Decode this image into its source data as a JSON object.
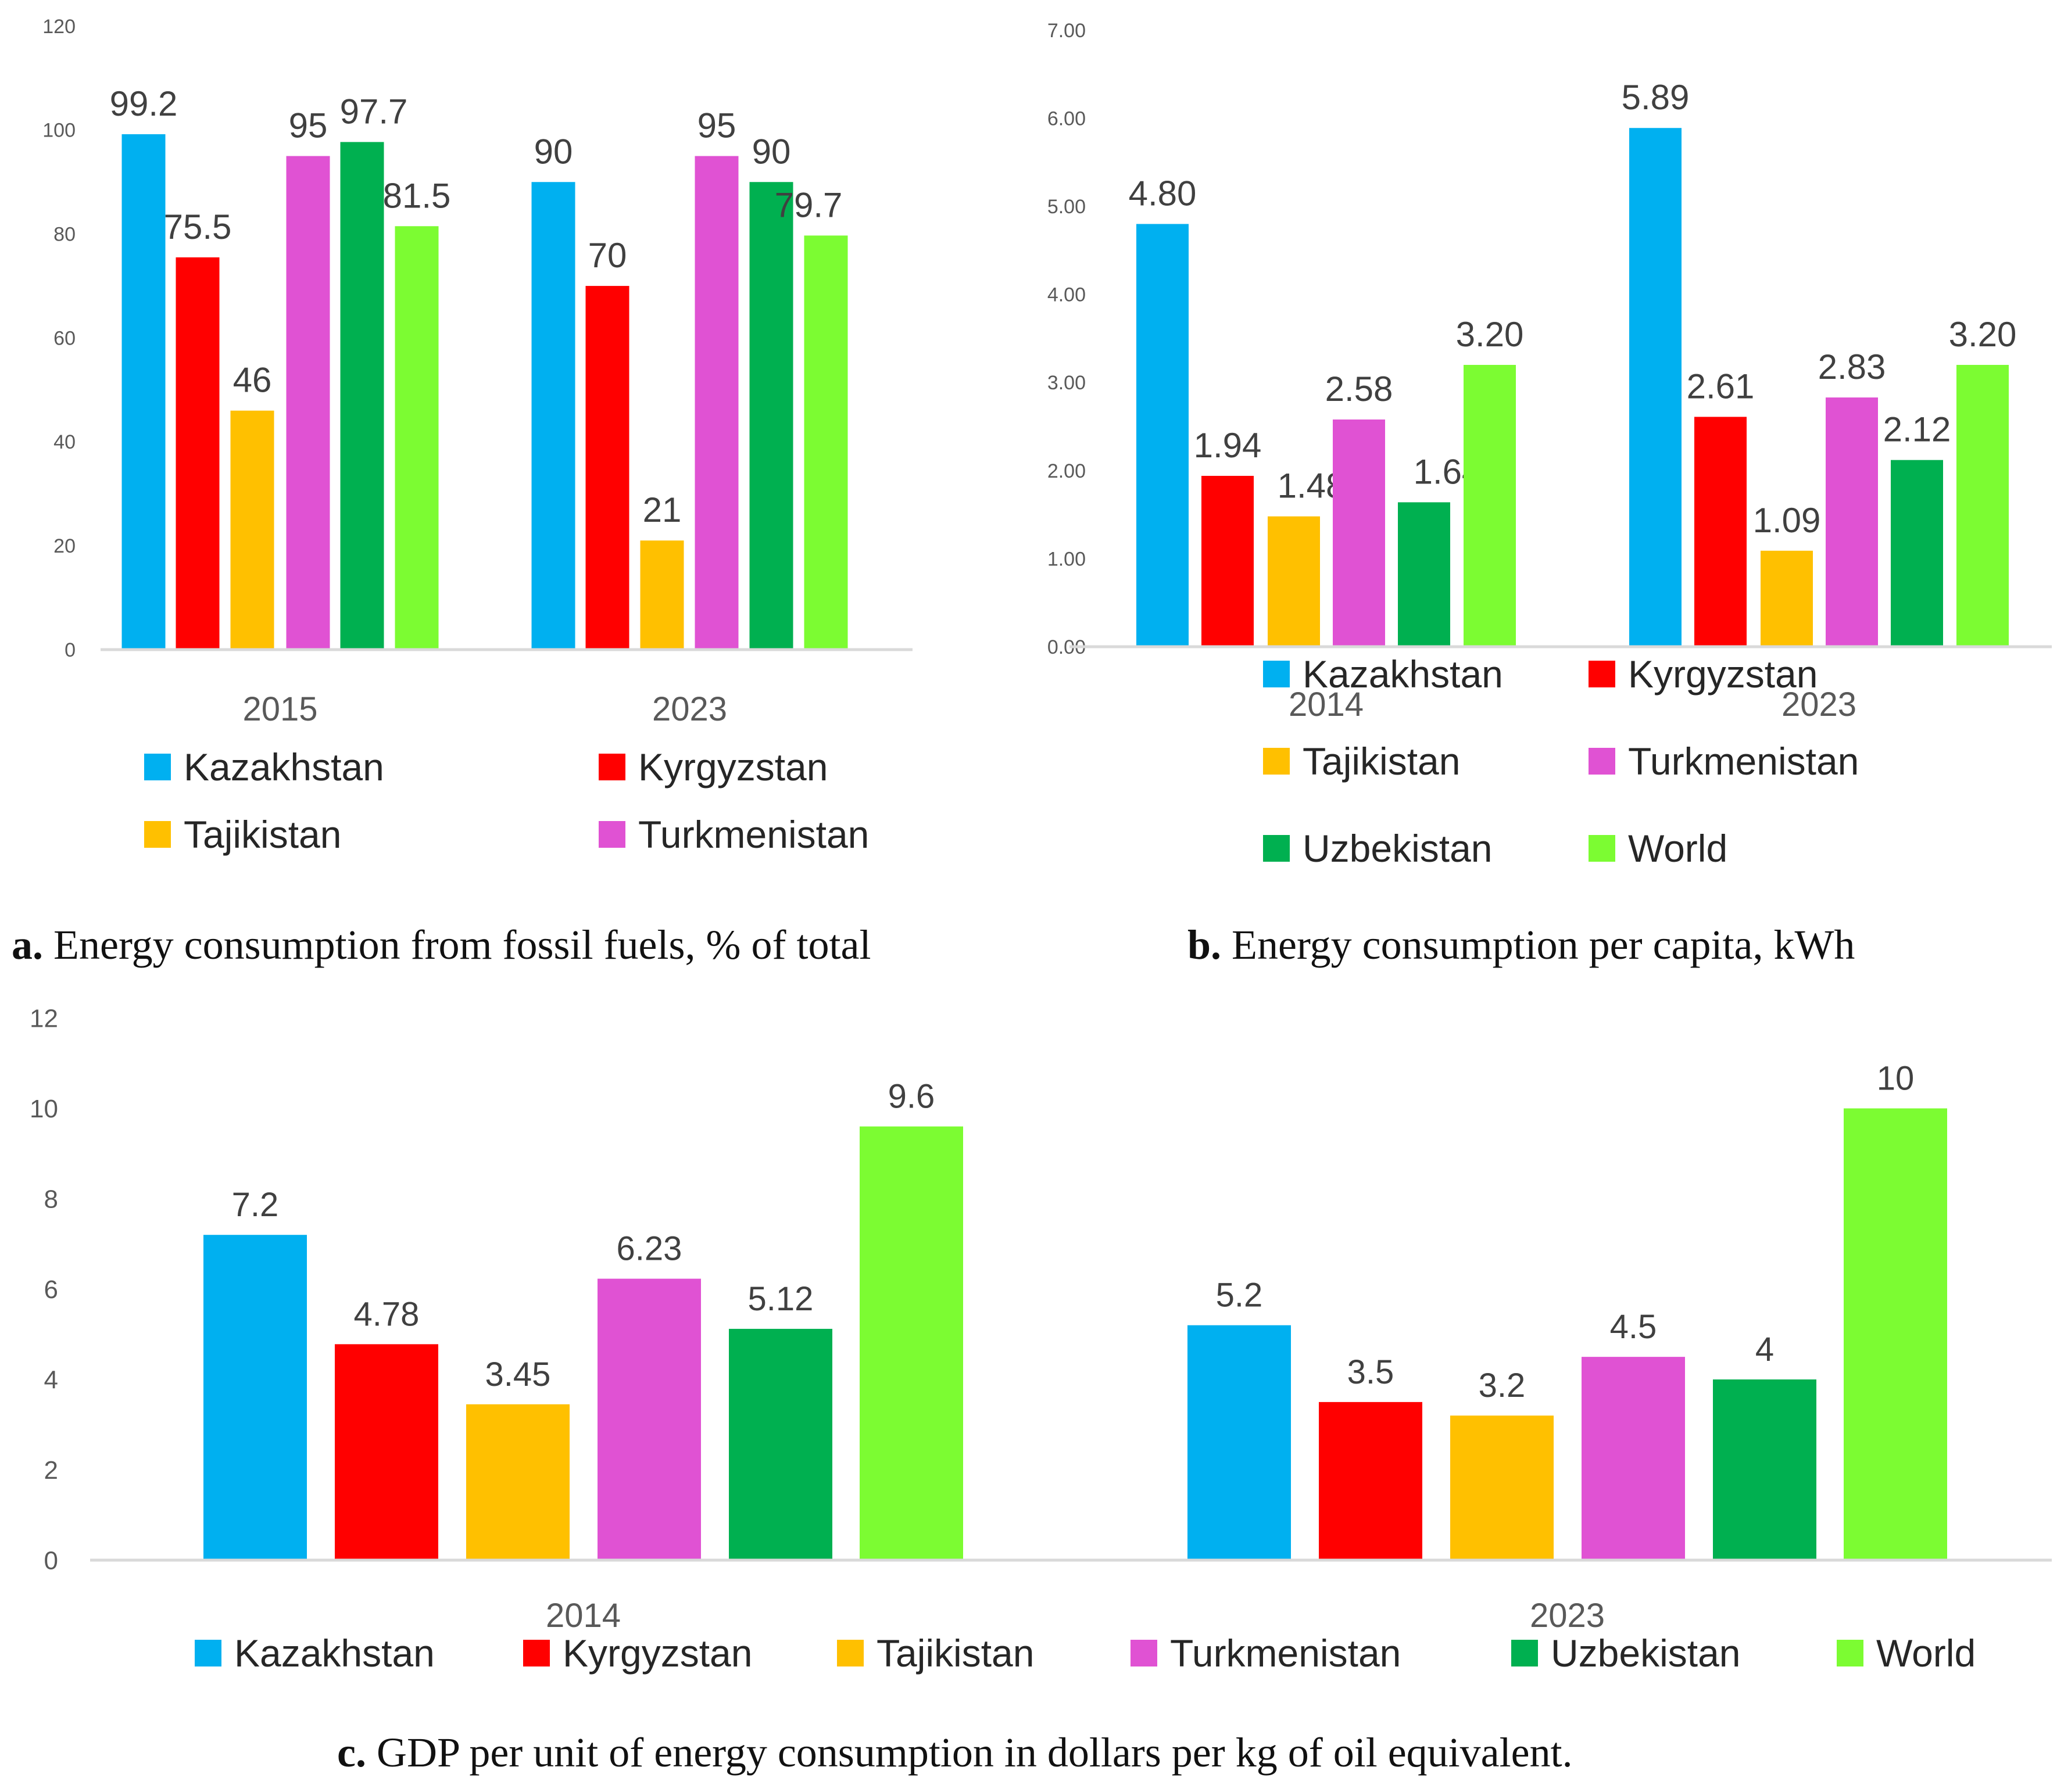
{
  "series_names": [
    "Kazakhstan",
    "Kyrgyzstan",
    "Tajikistan",
    "Turkmenistan",
    "Uzbekistan",
    "World"
  ],
  "colors": [
    "#00b0f0",
    "#ff0000",
    "#ffc000",
    "#e052d3",
    "#00b050",
    "#7cfc32"
  ],
  "captions": {
    "a_prefix": "a.",
    "a_text": " Energy consumption from fossil fuels, % of total",
    "b_prefix": "b.",
    "b_text": " Energy consumption per capita, kWh",
    "c_prefix": "c.",
    "c_text": " GDP per unit of energy consumption in dollars per kg of oil equivalent."
  },
  "chart_data": [
    {
      "id": "a",
      "type": "bar",
      "categories": [
        "2015",
        "2023"
      ],
      "series": [
        {
          "name": "Kazakhstan",
          "values": [
            99.2,
            90
          ],
          "labels": [
            "99.2",
            "90"
          ]
        },
        {
          "name": "Kyrgyzstan",
          "values": [
            75.5,
            70
          ],
          "labels": [
            "75.5",
            "70"
          ]
        },
        {
          "name": "Tajikistan",
          "values": [
            46,
            21
          ],
          "labels": [
            "46",
            "21"
          ]
        },
        {
          "name": "Turkmenistan",
          "values": [
            95,
            95
          ],
          "labels": [
            "95",
            "95"
          ]
        },
        {
          "name": "Uzbekistan",
          "values": [
            97.7,
            90
          ],
          "labels": [
            "97.7",
            "90"
          ]
        },
        {
          "name": "World",
          "values": [
            81.5,
            79.7
          ],
          "labels": [
            "81.5",
            "79.7"
          ]
        }
      ],
      "ylim": [
        0,
        120
      ],
      "yticks": [
        "0",
        "20",
        "40",
        "60",
        "80",
        "100",
        "120"
      ],
      "legend": [
        "Kazakhstan",
        "Kyrgyzstan",
        "Tajikistan",
        "Turkmenistan"
      ],
      "legend_position": "bottom",
      "grid": false
    },
    {
      "id": "b",
      "type": "bar",
      "categories": [
        "2014",
        "2023"
      ],
      "series": [
        {
          "name": "Kazakhstan",
          "values": [
            4.8,
            5.89
          ],
          "labels": [
            "4.80",
            "5.89"
          ]
        },
        {
          "name": "Kyrgyzstan",
          "values": [
            1.94,
            2.61
          ],
          "labels": [
            "1.94",
            "2.61"
          ]
        },
        {
          "name": "Tajikistan",
          "values": [
            1.48,
            1.09
          ],
          "labels": [
            "1.48",
            "1.09"
          ]
        },
        {
          "name": "Turkmenistan",
          "values": [
            2.58,
            2.83
          ],
          "labels": [
            "2.58",
            "2.83"
          ]
        },
        {
          "name": "Uzbekistan",
          "values": [
            1.64,
            2.12
          ],
          "labels": [
            "1.64",
            "2.12"
          ]
        },
        {
          "name": "World",
          "values": [
            3.2,
            3.2
          ],
          "labels": [
            "3.20",
            "3.20"
          ]
        }
      ],
      "ylim": [
        0,
        7
      ],
      "yticks": [
        "0.00",
        "1.00",
        "2.00",
        "3.00",
        "4.00",
        "5.00",
        "6.00",
        "7.00"
      ],
      "legend": [
        "Kazakhstan",
        "Kyrgyzstan",
        "Tajikistan",
        "Turkmenistan",
        "Uzbekistan",
        "World"
      ],
      "legend_position": "bottom",
      "grid": false
    },
    {
      "id": "c",
      "type": "bar",
      "categories": [
        "2014",
        "2023"
      ],
      "series": [
        {
          "name": "Kazakhstan",
          "values": [
            7.2,
            5.2
          ],
          "labels": [
            "7.2",
            "5.2"
          ]
        },
        {
          "name": "Kyrgyzstan",
          "values": [
            4.78,
            3.5
          ],
          "labels": [
            "4.78",
            "3.5"
          ]
        },
        {
          "name": "Tajikistan",
          "values": [
            3.45,
            3.2
          ],
          "labels": [
            "3.45",
            "3.2"
          ]
        },
        {
          "name": "Turkmenistan",
          "values": [
            6.23,
            4.5
          ],
          "labels": [
            "6.23",
            "4.5"
          ]
        },
        {
          "name": "Uzbekistan",
          "values": [
            5.12,
            4
          ],
          "labels": [
            "5.12",
            "4"
          ]
        },
        {
          "name": "World",
          "values": [
            9.6,
            10
          ],
          "labels": [
            "9.6",
            "10"
          ]
        }
      ],
      "ylim": [
        0,
        12
      ],
      "yticks": [
        "0",
        "2",
        "4",
        "6",
        "8",
        "10",
        "12"
      ],
      "legend": [
        "Kazakhstan",
        "Kyrgyzstan",
        "Tajikistan",
        "Turkmenistan",
        "Uzbekistan",
        "World"
      ],
      "legend_position": "bottom",
      "grid": false
    }
  ]
}
